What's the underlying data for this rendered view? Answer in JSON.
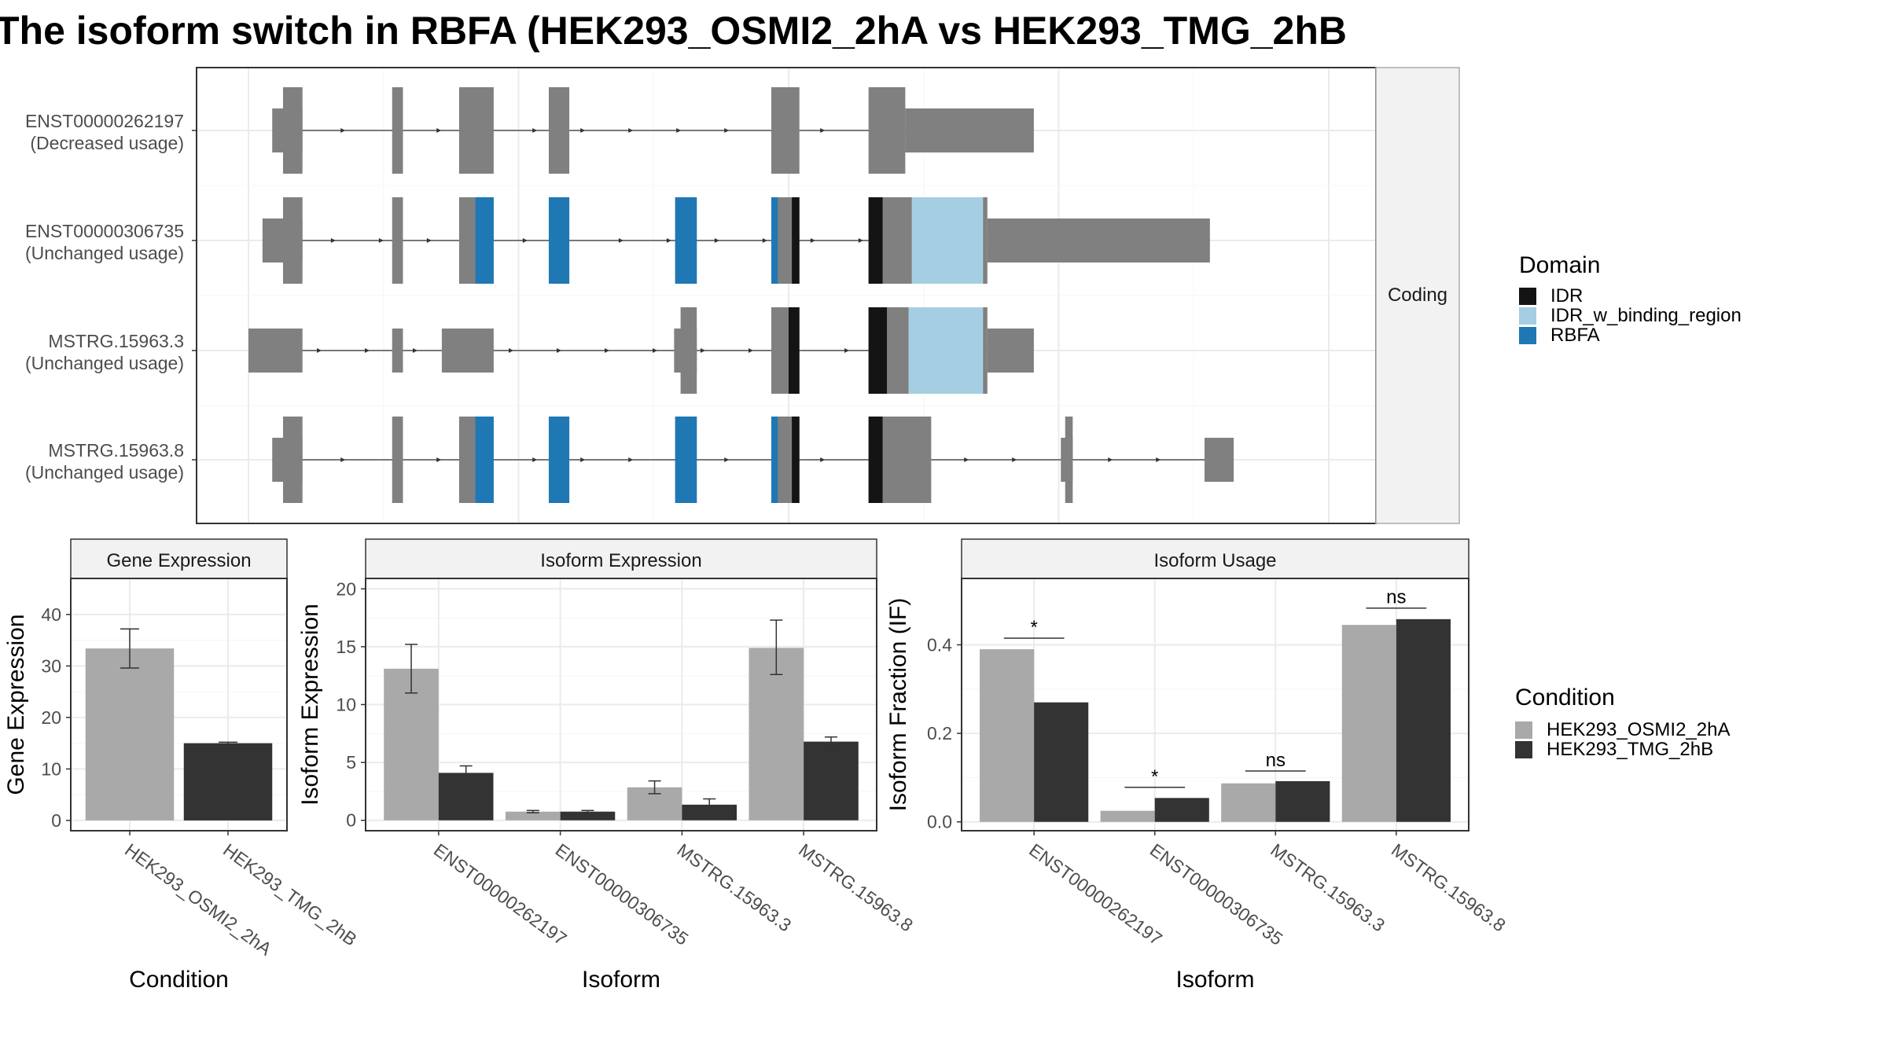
{
  "title": "The isoform switch in RBFA (HEK293_OSMI2_2hA vs HEK293_TMG_2hB",
  "colors": {
    "exon": "#808080",
    "IDR": "#141414",
    "IDR_w_binding_region": "#a6cee3",
    "RBFA": "#1f78b4",
    "cond_a": "#a9a9a9",
    "cond_b": "#333333",
    "strip": "#f2f2f2",
    "grid": "#ebebeb"
  },
  "structure": {
    "strip_label": "Coding",
    "x_range": [
      0,
      1000
    ],
    "transcripts": [
      {
        "id": "ENST00000262197",
        "status": "(Decreased usage)",
        "exons": [
          {
            "s": 22,
            "e": 50,
            "h": "small"
          },
          {
            "s": 32,
            "e": 50,
            "h": "big"
          },
          {
            "s": 133,
            "e": 143,
            "h": "big"
          },
          {
            "s": 195,
            "e": 227,
            "h": "big"
          },
          {
            "s": 278,
            "e": 297,
            "h": "big"
          },
          {
            "s": 484,
            "e": 510,
            "h": "big"
          },
          {
            "s": 574,
            "e": 608,
            "h": "big"
          },
          {
            "s": 608,
            "e": 727,
            "h": "small"
          }
        ],
        "domains": []
      },
      {
        "id": "ENST00000306735",
        "status": "(Unchanged usage)",
        "exons": [
          {
            "s": 13,
            "e": 50,
            "h": "small"
          },
          {
            "s": 32,
            "e": 50,
            "h": "big"
          },
          {
            "s": 133,
            "e": 143,
            "h": "big"
          },
          {
            "s": 195,
            "e": 227,
            "h": "big"
          },
          {
            "s": 278,
            "e": 297,
            "h": "big"
          },
          {
            "s": 395,
            "e": 415,
            "h": "big"
          },
          {
            "s": 484,
            "e": 510,
            "h": "big"
          },
          {
            "s": 574,
            "e": 684,
            "h": "big"
          },
          {
            "s": 684,
            "e": 890,
            "h": "small"
          }
        ],
        "domains": [
          {
            "type": "RBFA",
            "s": 210,
            "e": 227
          },
          {
            "type": "RBFA",
            "s": 278,
            "e": 297
          },
          {
            "type": "RBFA",
            "s": 395,
            "e": 415
          },
          {
            "type": "RBFA",
            "s": 484,
            "e": 490
          },
          {
            "type": "IDR",
            "s": 503,
            "e": 510
          },
          {
            "type": "IDR",
            "s": 574,
            "e": 587
          },
          {
            "type": "IDR_w_binding_region",
            "s": 614,
            "e": 680
          }
        ]
      },
      {
        "id": "MSTRG.15963.3",
        "status": "(Unchanged usage)",
        "exons": [
          {
            "s": 0,
            "e": 50,
            "h": "small"
          },
          {
            "s": 133,
            "e": 143,
            "h": "small"
          },
          {
            "s": 179,
            "e": 227,
            "h": "small"
          },
          {
            "s": 394,
            "e": 415,
            "h": "small"
          },
          {
            "s": 400,
            "e": 415,
            "h": "big"
          },
          {
            "s": 484,
            "e": 510,
            "h": "big"
          },
          {
            "s": 574,
            "e": 684,
            "h": "big"
          },
          {
            "s": 684,
            "e": 727,
            "h": "small"
          }
        ],
        "domains": [
          {
            "type": "IDR",
            "s": 500,
            "e": 510
          },
          {
            "type": "IDR",
            "s": 574,
            "e": 591
          },
          {
            "type": "IDR_w_binding_region",
            "s": 611,
            "e": 680
          }
        ]
      },
      {
        "id": "MSTRG.15963.8",
        "status": "(Unchanged usage)",
        "exons": [
          {
            "s": 22,
            "e": 50,
            "h": "small"
          },
          {
            "s": 32,
            "e": 50,
            "h": "big"
          },
          {
            "s": 133,
            "e": 143,
            "h": "big"
          },
          {
            "s": 195,
            "e": 227,
            "h": "big"
          },
          {
            "s": 278,
            "e": 297,
            "h": "big"
          },
          {
            "s": 395,
            "e": 415,
            "h": "big"
          },
          {
            "s": 484,
            "e": 510,
            "h": "big"
          },
          {
            "s": 574,
            "e": 632,
            "h": "big"
          },
          {
            "s": 752,
            "e": 763,
            "h": "small"
          },
          {
            "s": 756,
            "e": 763,
            "h": "big"
          },
          {
            "s": 885,
            "e": 912,
            "h": "small"
          }
        ],
        "domains": [
          {
            "type": "RBFA",
            "s": 210,
            "e": 227
          },
          {
            "type": "RBFA",
            "s": 278,
            "e": 297
          },
          {
            "type": "RBFA",
            "s": 395,
            "e": 415
          },
          {
            "type": "RBFA",
            "s": 484,
            "e": 490
          },
          {
            "type": "IDR",
            "s": 503,
            "e": 510
          },
          {
            "type": "IDR",
            "s": 574,
            "e": 587
          }
        ]
      }
    ]
  },
  "legend_domain": {
    "title": "Domain",
    "items": [
      {
        "label": "IDR",
        "key": "IDR"
      },
      {
        "label": "IDR_w_binding_region",
        "key": "IDR_w_binding_region"
      },
      {
        "label": "RBFA",
        "key": "RBFA"
      }
    ]
  },
  "legend_condition": {
    "title": "Condition",
    "items": [
      {
        "label": "HEK293_OSMI2_2hA",
        "key": "cond_a"
      },
      {
        "label": "HEK293_TMG_2hB",
        "key": "cond_b"
      }
    ]
  },
  "chart_data": [
    {
      "type": "bar",
      "title": "Gene Expression",
      "xlabel": "Condition",
      "ylabel": "Gene Expression",
      "ylim": [
        -2,
        47
      ],
      "yticks": [
        0,
        10,
        20,
        30,
        40
      ],
      "ytick_labels": [
        "0",
        "10",
        "20",
        "30",
        "40"
      ],
      "categories": [
        "HEK293_OSMI2_2hA",
        "HEK293_TMG_2hB"
      ],
      "values": [
        33.4,
        15.0
      ],
      "errors": [
        [
          29.6,
          37.2
        ],
        [
          14.8,
          15.2
        ]
      ],
      "colors": [
        "cond_a",
        "cond_b"
      ]
    },
    {
      "type": "bar",
      "title": "Isoform Expression",
      "xlabel": "Isoform",
      "ylabel": "Isoform Expression",
      "ylim": [
        -0.9,
        20.9
      ],
      "yticks": [
        0,
        5,
        10,
        15,
        20
      ],
      "ytick_labels": [
        "0",
        "5",
        "10",
        "15",
        "20"
      ],
      "categories": [
        "ENST00000262197",
        "ENST00000306735",
        "MSTRG.15963.3",
        "MSTRG.15963.8"
      ],
      "series": [
        {
          "name": "HEK293_OSMI2_2hA",
          "values": [
            13.1,
            0.75,
            2.85,
            14.9
          ],
          "errors": [
            [
              11.0,
              15.2
            ],
            [
              0.65,
              0.85
            ],
            [
              2.3,
              3.4
            ],
            [
              12.6,
              17.3
            ]
          ]
        },
        {
          "name": "HEK293_TMG_2hB",
          "values": [
            4.1,
            0.75,
            1.35,
            6.8
          ],
          "errors": [
            [
              3.5,
              4.7
            ],
            [
              0.65,
              0.85
            ],
            [
              0.85,
              1.85
            ],
            [
              6.5,
              7.2
            ]
          ]
        }
      ]
    },
    {
      "type": "bar",
      "title": "Isoform Usage",
      "xlabel": "Isoform",
      "ylabel": "Isoform Fraction (IF)",
      "ylim": [
        -0.02,
        0.55
      ],
      "yticks": [
        0,
        0.2,
        0.4
      ],
      "ytick_labels": [
        "0.0",
        "0.2",
        "0.4"
      ],
      "categories": [
        "ENST00000262197",
        "ENST00000306735",
        "MSTRG.15963.3",
        "MSTRG.15963.8"
      ],
      "series": [
        {
          "name": "HEK293_OSMI2_2hA",
          "values": [
            0.39,
            0.025,
            0.087,
            0.445
          ]
        },
        {
          "name": "HEK293_TMG_2hB",
          "values": [
            0.27,
            0.054,
            0.092,
            0.458
          ]
        }
      ],
      "significance": [
        {
          "label": "*",
          "at": 0.415
        },
        {
          "label": "*",
          "at": 0.078
        },
        {
          "label": "ns",
          "at": 0.115
        },
        {
          "label": "ns",
          "at": 0.483
        }
      ]
    }
  ]
}
